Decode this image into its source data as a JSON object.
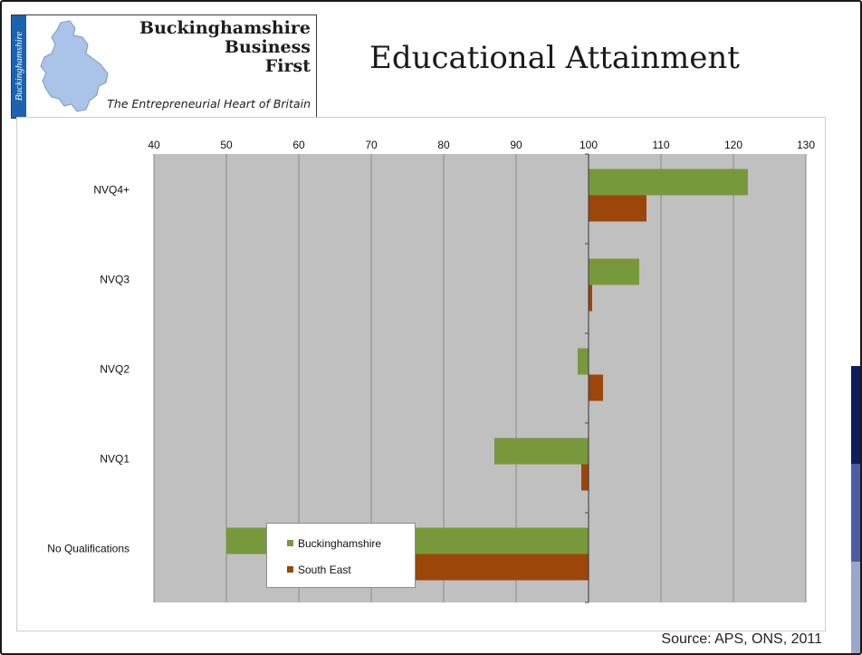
{
  "logo": {
    "side_text": "Buckinghamshire",
    "name_line1": "Buckinghamshire",
    "name_line2": "Business",
    "name_line3": "First",
    "tagline": "The Entrepreneurial Heart of Britain",
    "icon": "county-map-icon",
    "strip_color": "#1b62b0",
    "map_color": "#a9c4e8"
  },
  "slide": {
    "title": "Educational Attainment"
  },
  "source": "Source: APS, ONS, 2011",
  "chart_data": {
    "type": "bar",
    "orientation": "horizontal",
    "title": "",
    "xlabel": "",
    "ylabel": "",
    "categories": [
      "NVQ4+",
      "NVQ3",
      "NVQ2",
      "NVQ1",
      "No Qualifications"
    ],
    "baseline": 100,
    "xlim": [
      40,
      130
    ],
    "x_ticks": [
      40,
      50,
      60,
      70,
      80,
      90,
      100,
      110,
      120,
      130
    ],
    "x_axis_position": "top",
    "grid": true,
    "legend_position": "center-left",
    "series": [
      {
        "name": "Buckinghamshire",
        "color": "#77993c",
        "values": [
          122,
          107,
          98.5,
          87,
          50
        ]
      },
      {
        "name": "South East",
        "color": "#9c460a",
        "values": [
          108,
          100.5,
          102,
          99,
          75
        ]
      }
    ]
  }
}
